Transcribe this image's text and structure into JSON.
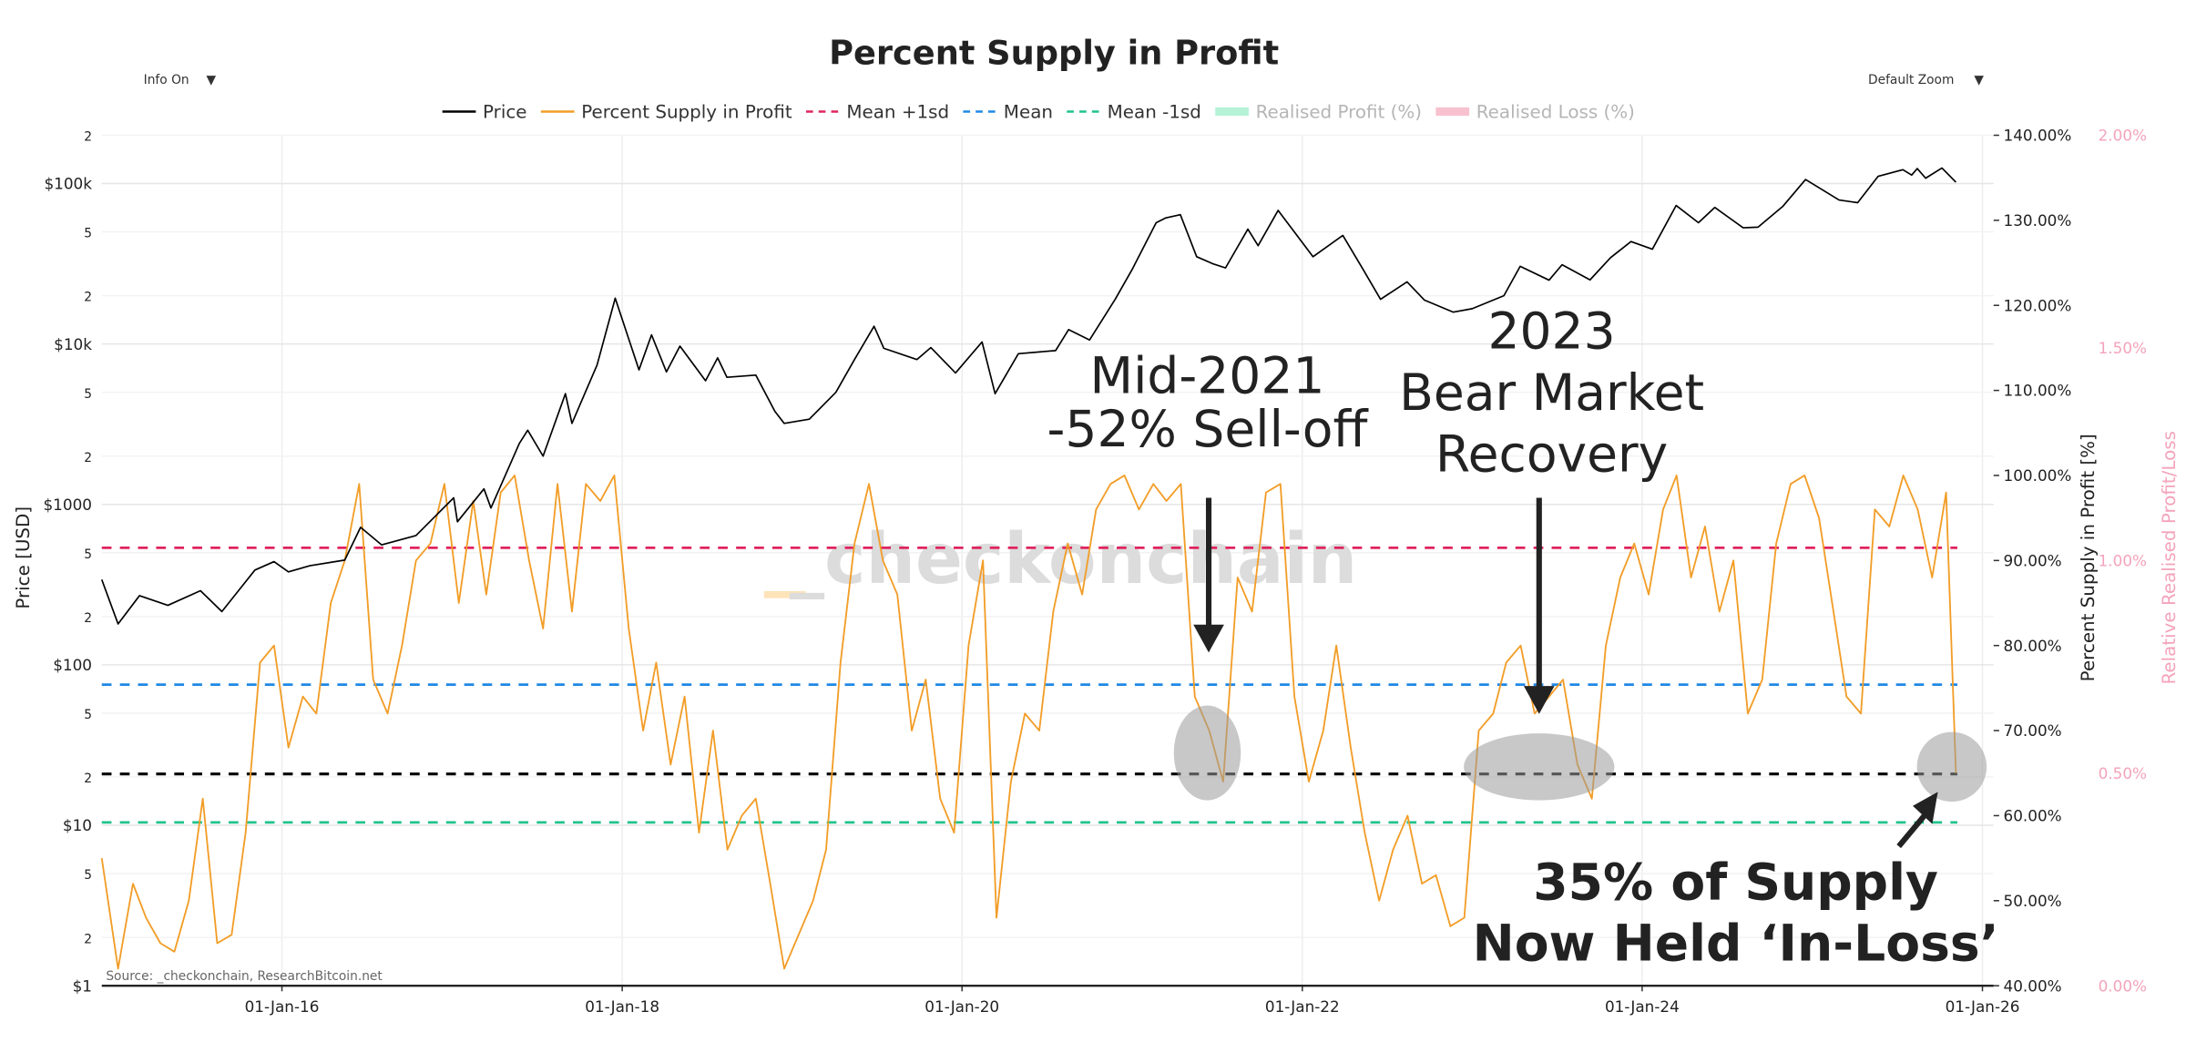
{
  "ui": {
    "info_toggle": "Info On",
    "zoom_select": "Default Zoom",
    "dropdown_icon": "▼"
  },
  "chart_data": {
    "type": "line",
    "title": "Percent Supply in Profit",
    "source": "Source: _checkonchain, ResearchBitcoin.net",
    "watermark": "_checkonchain",
    "ylabel": "Price [USD]",
    "y2label": "Percent Supply in Profit [%]",
    "y3label": "Relative Realised Profit/Loss",
    "log_y": true,
    "grid": true,
    "xlim": [
      "2014-12-10",
      "2026-01-25"
    ],
    "xticks": [
      {
        "value": "2016-01-01",
        "label": "01-Jan-16"
      },
      {
        "value": "2018-01-01",
        "label": "01-Jan-18"
      },
      {
        "value": "2020-01-01",
        "label": "01-Jan-20"
      },
      {
        "value": "2022-01-01",
        "label": "01-Jan-22"
      },
      {
        "value": "2024-01-01",
        "label": "01-Jan-24"
      },
      {
        "value": "2026-01-01",
        "label": "01-Jan-26"
      }
    ],
    "ylim": [
      1,
      200000
    ],
    "yticks": [
      {
        "value": 1,
        "label": "$1"
      },
      2,
      5,
      {
        "value": 10,
        "label": "$10"
      },
      {
        "value": 20,
        "label": "2"
      },
      {
        "value": 50,
        "label": "5"
      },
      {
        "value": 100,
        "label": "$100"
      },
      {
        "value": 200,
        "label": "2"
      },
      {
        "value": 500,
        "label": "5"
      },
      {
        "value": 1000,
        "label": "$1000"
      },
      {
        "value": 2000,
        "label": "2"
      },
      {
        "value": 5000,
        "label": "5"
      },
      {
        "value": 10000,
        "label": "$10k"
      },
      {
        "value": 20000,
        "label": "2"
      },
      {
        "value": 50000,
        "label": "5"
      },
      {
        "value": 100000,
        "label": "$100k"
      },
      {
        "value": 200000,
        "label": "2"
      }
    ],
    "y2lim": [
      40,
      140
    ],
    "y2ticks": [
      {
        "value": 40,
        "label": "40.00%"
      },
      {
        "value": 50,
        "label": "50.00%"
      },
      {
        "value": 60,
        "label": "60.00%"
      },
      {
        "value": 70,
        "label": "70.00%"
      },
      {
        "value": 80,
        "label": "80.00%"
      },
      {
        "value": 90,
        "label": "90.00%"
      },
      {
        "value": 100,
        "label": "100.00%"
      },
      {
        "value": 110,
        "label": "110.00%"
      },
      {
        "value": 120,
        "label": "120.00%"
      },
      {
        "value": 130,
        "label": "130.00%"
      },
      {
        "value": 140,
        "label": "140.00%"
      }
    ],
    "y3lim": [
      0,
      2
    ],
    "y3ticks": [
      {
        "value": 0,
        "label": "0.00%"
      },
      {
        "value": 0.5,
        "label": "0.50%"
      },
      {
        "value": 1,
        "label": "1.00%"
      },
      {
        "value": 1.5,
        "label": "1.50%"
      },
      {
        "value": 2,
        "label": "2.00%"
      }
    ],
    "series": [
      {
        "name": "Price",
        "color": "#000000",
        "axis": "y",
        "x": [
          "2014-12-10",
          "2015-01-14",
          "2015-03-01",
          "2015-05-01",
          "2015-07-10",
          "2015-08-25",
          "2015-11-04",
          "2015-12-15",
          "2016-01-15",
          "2016-03-01",
          "2016-05-15",
          "2016-06-18",
          "2016-08-02",
          "2016-10-15",
          "2017-01-04",
          "2017-01-12",
          "2017-03-10",
          "2017-03-25",
          "2017-05-25",
          "2017-06-12",
          "2017-07-15",
          "2017-09-01",
          "2017-09-15",
          "2017-11-08",
          "2017-12-17",
          "2018-02-06",
          "2018-03-05",
          "2018-04-06",
          "2018-05-05",
          "2018-06-29",
          "2018-07-25",
          "2018-08-14",
          "2018-10-15",
          "2018-11-25",
          "2018-12-15",
          "2019-02-07",
          "2019-04-05",
          "2019-05-15",
          "2019-06-26",
          "2019-07-17",
          "2019-09-26",
          "2019-10-26",
          "2019-12-18",
          "2020-02-13",
          "2020-03-12",
          "2020-05-01",
          "2020-07-20",
          "2020-08-17",
          "2020-10-01",
          "2020-11-25",
          "2020-12-31",
          "2021-02-21",
          "2021-03-13",
          "2021-04-14",
          "2021-05-19",
          "2021-06-22",
          "2021-07-20",
          "2021-09-06",
          "2021-09-28",
          "2021-11-10",
          "2022-01-24",
          "2022-03-29",
          "2022-05-12",
          "2022-06-18",
          "2022-08-14",
          "2022-09-20",
          "2022-11-21",
          "2023-01-01",
          "2023-03-10",
          "2023-04-14",
          "2023-06-15",
          "2023-07-13",
          "2023-09-11",
          "2023-10-25",
          "2023-12-08",
          "2024-01-23",
          "2024-03-14",
          "2024-05-01",
          "2024-06-05",
          "2024-08-05",
          "2024-09-06",
          "2024-10-29",
          "2024-12-17",
          "2025-02-27",
          "2025-04-08",
          "2025-05-22",
          "2025-07-14",
          "2025-08-02",
          "2025-08-14",
          "2025-09-01",
          "2025-10-06",
          "2025-11-05"
        ],
        "values": [
          340,
          180,
          270,
          235,
          290,
          215,
          390,
          440,
          380,
          415,
          450,
          720,
          560,
          640,
          1100,
          780,
          1250,
          950,
          2400,
          2900,
          2000,
          4900,
          3200,
          7400,
          19300,
          6900,
          11400,
          6700,
          9700,
          5900,
          8200,
          6200,
          6400,
          3800,
          3200,
          3400,
          5000,
          8000,
          12900,
          9400,
          8000,
          9500,
          6600,
          10300,
          4900,
          8700,
          9100,
          12300,
          10600,
          19000,
          29000,
          57000,
          61000,
          64000,
          35000,
          31700,
          29800,
          52000,
          41000,
          68000,
          35000,
          47500,
          29000,
          19000,
          24400,
          18800,
          15800,
          16600,
          20000,
          30500,
          25000,
          31200,
          25100,
          34500,
          43500,
          39000,
          73000,
          57000,
          71000,
          53000,
          53500,
          72000,
          106000,
          79000,
          76000,
          111000,
          122000,
          113000,
          124000,
          108000,
          125000,
          102000
        ]
      },
      {
        "name": "Percent Supply in Profit",
        "color": "#f29d27",
        "axis": "y2",
        "x": [
          "2014-12-10",
          "2015-01-14",
          "2015-02-15",
          "2015-03-15",
          "2015-04-15",
          "2015-05-15",
          "2015-06-15",
          "2015-07-15",
          "2015-08-15",
          "2015-09-15",
          "2015-10-15",
          "2015-11-15",
          "2015-12-15",
          "2016-01-15",
          "2016-02-15",
          "2016-03-15",
          "2016-04-15",
          "2016-05-15",
          "2016-06-15",
          "2016-07-15",
          "2016-08-15",
          "2016-09-15",
          "2016-10-15",
          "2016-11-15",
          "2016-12-15",
          "2017-01-15",
          "2017-02-15",
          "2017-03-15",
          "2017-04-15",
          "2017-05-15",
          "2017-06-15",
          "2017-07-15",
          "2017-08-15",
          "2017-09-15",
          "2017-10-15",
          "2017-11-15",
          "2017-12-15",
          "2018-01-15",
          "2018-02-15",
          "2018-03-15",
          "2018-04-15",
          "2018-05-15",
          "2018-06-15",
          "2018-07-15",
          "2018-08-15",
          "2018-09-15",
          "2018-10-15",
          "2018-11-15",
          "2018-12-15",
          "2019-01-15",
          "2019-02-15",
          "2019-03-15",
          "2019-04-15",
          "2019-05-15",
          "2019-06-15",
          "2019-07-15",
          "2019-08-15",
          "2019-09-15",
          "2019-10-15",
          "2019-11-15",
          "2019-12-15",
          "2020-01-15",
          "2020-02-15",
          "2020-03-15",
          "2020-04-15",
          "2020-05-15",
          "2020-06-15",
          "2020-07-15",
          "2020-08-15",
          "2020-09-15",
          "2020-10-15",
          "2020-11-15",
          "2020-12-15",
          "2021-01-15",
          "2021-02-15",
          "2021-03-15",
          "2021-04-15",
          "2021-05-15",
          "2021-06-15",
          "2021-07-15",
          "2021-08-15",
          "2021-09-15",
          "2021-10-15",
          "2021-11-15",
          "2021-12-15",
          "2022-01-15",
          "2022-02-15",
          "2022-03-15",
          "2022-04-15",
          "2022-05-15",
          "2022-06-15",
          "2022-07-15",
          "2022-08-15",
          "2022-09-15",
          "2022-10-15",
          "2022-11-15",
          "2022-12-15",
          "2023-01-15",
          "2023-02-15",
          "2023-03-15",
          "2023-04-15",
          "2023-05-15",
          "2023-06-15",
          "2023-07-15",
          "2023-08-15",
          "2023-09-15",
          "2023-10-15",
          "2023-11-15",
          "2023-12-15",
          "2024-01-15",
          "2024-02-15",
          "2024-03-15",
          "2024-04-15",
          "2024-05-15",
          "2024-06-15",
          "2024-07-15",
          "2024-08-15",
          "2024-09-15",
          "2024-10-15",
          "2024-11-15",
          "2024-12-15",
          "2025-01-15",
          "2025-02-15",
          "2025-03-15",
          "2025-04-15",
          "2025-05-15",
          "2025-06-15",
          "2025-07-15",
          "2025-08-15",
          "2025-09-15",
          "2025-10-15",
          "2025-11-05"
        ],
        "values": [
          55,
          42,
          52,
          48,
          45,
          44,
          50,
          62,
          45,
          46,
          58,
          78,
          80,
          68,
          74,
          72,
          85,
          90,
          99,
          76,
          72,
          80,
          90,
          92,
          99,
          85,
          97,
          86,
          98,
          100,
          90,
          82,
          99,
          84,
          99,
          97,
          100,
          82,
          70,
          78,
          66,
          74,
          58,
          70,
          56,
          60,
          62,
          52,
          42,
          46,
          50,
          56,
          78,
          92,
          99,
          90,
          86,
          70,
          76,
          62,
          58,
          80,
          90,
          48,
          64,
          72,
          70,
          84,
          92,
          86,
          96,
          99,
          100,
          96,
          99,
          97,
          99,
          74,
          70,
          64,
          88,
          84,
          98,
          99,
          74,
          64,
          70,
          80,
          68,
          58,
          50,
          56,
          60,
          52,
          53,
          47,
          48,
          70,
          72,
          78,
          80,
          72,
          74,
          76,
          66,
          62,
          80,
          88,
          92,
          86,
          96,
          100,
          88,
          94,
          84,
          90,
          72,
          76,
          92,
          99,
          100,
          95,
          84,
          74,
          72,
          96,
          94,
          100,
          96,
          88,
          98,
          65
        ]
      }
    ],
    "hlines": [
      {
        "name": "Mean +1sd",
        "color": "#e0245e",
        "value": 91.5
      },
      {
        "name": "Mean",
        "color": "#1e88e5",
        "value": 75.4
      },
      {
        "name": "Mean -1sd",
        "color": "#1fc38a",
        "value": 59.2
      }
    ],
    "reference_line": {
      "color": "#000000",
      "value": 64.9
    },
    "hidden_series": [
      {
        "name": "Realised Profit (%)",
        "color": "#b5f2d6"
      },
      {
        "name": "Realised Loss (%)",
        "color": "#f8c1d0"
      }
    ],
    "annotations": [
      {
        "lines": [
          "Mid-2021",
          "-52% Sell-off"
        ]
      },
      {
        "lines": [
          "2023",
          "Bear Market",
          "Recovery"
        ]
      },
      {
        "lines": [
          "35% of Supply",
          "Now Held ‘In-Loss’"
        ]
      }
    ]
  }
}
